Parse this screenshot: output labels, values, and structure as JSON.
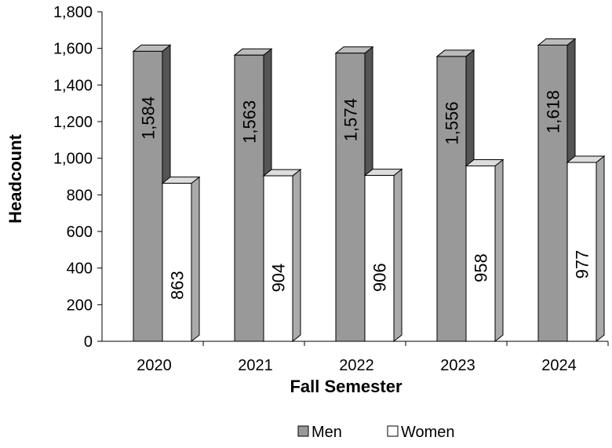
{
  "chart_data": {
    "type": "bar",
    "style": "3d-column",
    "categories": [
      "2020",
      "2021",
      "2022",
      "2023",
      "2024"
    ],
    "series": [
      {
        "name": "Men",
        "values": [
          1584,
          1563,
          1574,
          1556,
          1618
        ],
        "labels": [
          "1,584",
          "1,563",
          "1,574",
          "1,556",
          "1,618"
        ],
        "color": "#999999"
      },
      {
        "name": "Women",
        "values": [
          863,
          904,
          906,
          958,
          977
        ],
        "labels": [
          "863",
          "904",
          "906",
          "958",
          "977"
        ],
        "color": "#ffffff"
      }
    ],
    "title": "",
    "xlabel": "Fall Semester",
    "ylabel": "Headcount",
    "ylim": [
      0,
      1800
    ],
    "yticks": [
      0,
      200,
      400,
      600,
      800,
      1000,
      1200,
      1400,
      1600,
      1800
    ],
    "ytick_labels": [
      "0",
      "200",
      "400",
      "600",
      "800",
      "1,000",
      "1,200",
      "1,400",
      "1,600",
      "1,800"
    ],
    "grid": false,
    "legend_position": "bottom-center"
  }
}
